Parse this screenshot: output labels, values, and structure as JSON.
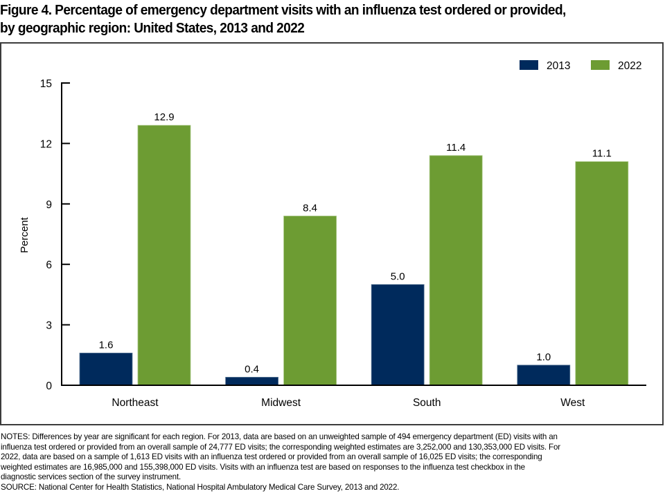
{
  "figure": {
    "title_lines": [
      "Figure 4. Percentage of emergency department visits with an influenza test ordered or provided,",
      "by geographic region: United States, 2013 and 2022"
    ],
    "notes_lines": [
      "NOTES: Differences by year are significant for each region. For 2013, data are based on an unweighted sample of 494 emergency department (ED) visits with an",
      "influenza test ordered or provided from an overall sample of 24,777 ED visits; the corresponding weighted estimates are 3,252,000 and 130,353,000 ED visits. For",
      "2022, data are based on a sample of 1,613 ED visits with an influenza test ordered or provided from an overall sample of 16,025 ED visits; the corresponding",
      "weighted estimates are 16,985,000 and 155,398,000 ED visits. Visits with an influenza test are based on responses to the influenza test checkbox in the",
      "diagnostic services section of the survey instrument."
    ],
    "source": "SOURCE: National Center for Health Statistics, National Hospital Ambulatory Medical Care Survey, 2013 and 2022."
  },
  "chart_data": {
    "type": "bar",
    "title": "Percentage of emergency department visits with an influenza test ordered or provided, by geographic region: United States, 2013 and 2022",
    "xlabel": "",
    "ylabel": "Percent",
    "ylim": [
      0,
      15
    ],
    "yticks": [
      0,
      3,
      6,
      9,
      12,
      15
    ],
    "grid": false,
    "legend_position": "top-right",
    "categories": [
      "Northeast",
      "Midwest",
      "South",
      "West"
    ],
    "series": [
      {
        "name": "2013",
        "color": "#002a5c",
        "values": [
          1.6,
          0.4,
          5.0,
          1.0
        ],
        "labels": [
          "1.6",
          "0.4",
          "5.0",
          "1.0"
        ]
      },
      {
        "name": "2022",
        "color": "#6d9c33",
        "values": [
          12.9,
          8.4,
          11.4,
          11.1
        ],
        "labels": [
          "12.9",
          "8.4",
          "11.4",
          "11.1"
        ]
      }
    ]
  }
}
